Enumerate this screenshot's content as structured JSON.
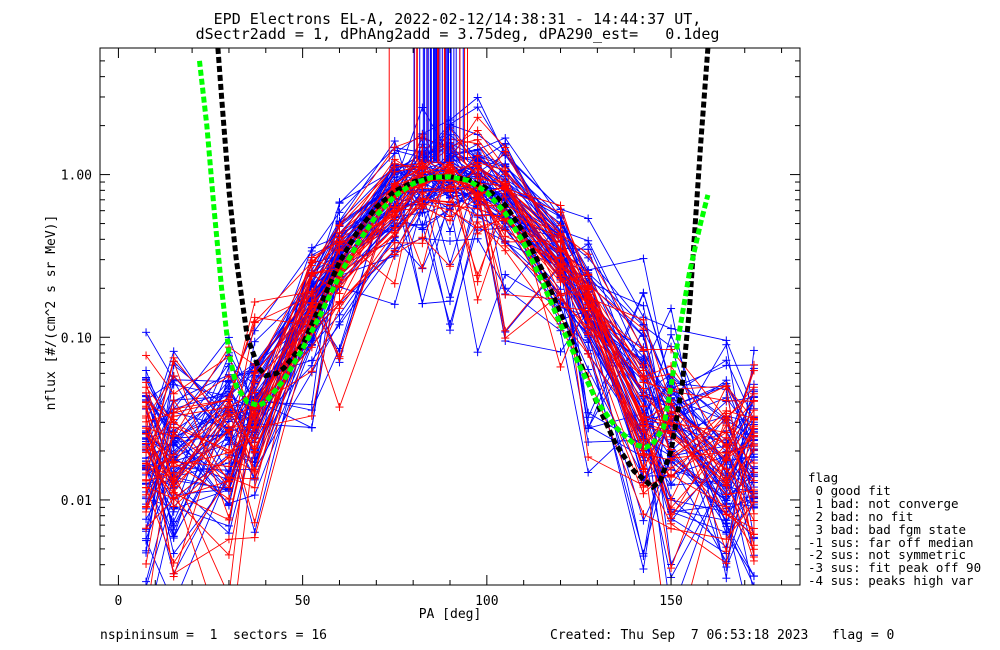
{
  "header": {
    "title_line1": "EPD Electrons EL-A, 2022-02-12/14:38:31 - 14:44:37 UT,",
    "title_line2": "dSectr2add = 1, dPhAng2add = 3.75deg, dPA290_est=   0.1deg"
  },
  "footer": {
    "left": "nspininsum =  1  sectors = 16",
    "right": "Created: Thu Sep  7 06:53:18 2023   flag = 0"
  },
  "legend": {
    "title": "flag",
    "items": [
      " 0 good fit",
      " 1 bad: not converge",
      " 2 bad: no fit",
      " 3 bad: bad fgm state",
      "-1 sus: far off median",
      "-2 sus: not symmetric",
      "-3 sus: fit peak off 90",
      "-4 sus: peaks high var"
    ]
  },
  "chart_data": {
    "type": "line",
    "xlabel": "PA [deg]",
    "ylabel": "nflux [#/(cm^2 s sr MeV)]",
    "xlim": [
      -5,
      185
    ],
    "ylim": [
      0.003,
      6.0
    ],
    "yscale": "log",
    "x_ticks": [
      "0",
      "50",
      "100",
      "150"
    ],
    "x_tick_values": [
      0,
      50,
      100,
      150
    ],
    "y_ticks": [
      "0.01",
      "0.10",
      "1.00"
    ],
    "y_tick_values": [
      0.01,
      0.1,
      1.0
    ],
    "pa_bins": [
      7.5,
      15,
      30,
      37,
      52.5,
      60,
      75,
      82.5,
      90,
      97.5,
      105,
      120,
      127.5,
      142.5,
      150,
      165,
      172.5
    ],
    "series": [
      {
        "color": "#0000ff",
        "count": 60,
        "marker": "plus"
      },
      {
        "color": "#ff0000",
        "count": 35,
        "marker": "plus"
      }
    ],
    "fit_curves": [
      {
        "color": "#000000",
        "dash": true,
        "x": [
          27,
          28,
          30,
          32,
          35,
          38,
          40,
          43,
          45,
          50,
          55,
          60,
          65,
          70,
          75,
          80,
          85,
          90,
          95,
          100,
          105,
          110,
          115,
          120,
          125,
          130,
          135,
          140,
          145,
          147,
          150,
          153,
          155,
          158,
          160
        ],
        "y": [
          6.0,
          3.0,
          0.8,
          0.3,
          0.1,
          0.065,
          0.058,
          0.06,
          0.065,
          0.09,
          0.16,
          0.29,
          0.45,
          0.63,
          0.79,
          0.9,
          0.96,
          0.97,
          0.93,
          0.82,
          0.65,
          0.44,
          0.26,
          0.14,
          0.073,
          0.039,
          0.022,
          0.015,
          0.012,
          0.013,
          0.02,
          0.05,
          0.15,
          1.5,
          6.0
        ]
      },
      {
        "color": "#00ff00",
        "dash": true,
        "x": [
          22,
          24,
          26,
          28,
          30,
          32,
          35,
          38,
          40,
          45,
          50,
          55,
          60,
          65,
          70,
          75,
          80,
          85,
          90,
          95,
          100,
          105,
          110,
          115,
          120,
          125,
          130,
          135,
          140,
          143,
          145,
          148,
          150,
          152,
          155,
          158,
          160
        ],
        "y": [
          5.0,
          2.0,
          0.6,
          0.2,
          0.08,
          0.05,
          0.04,
          0.038,
          0.04,
          0.055,
          0.085,
          0.14,
          0.24,
          0.38,
          0.56,
          0.74,
          0.88,
          0.96,
          0.97,
          0.92,
          0.78,
          0.58,
          0.38,
          0.22,
          0.12,
          0.068,
          0.04,
          0.028,
          0.022,
          0.021,
          0.022,
          0.028,
          0.05,
          0.1,
          0.25,
          0.5,
          0.75
        ]
      }
    ],
    "colors": {
      "blue_series": "#0000ff",
      "red_series": "#ff0000",
      "fit_black": "#000000",
      "fit_green": "#00ff00"
    }
  }
}
